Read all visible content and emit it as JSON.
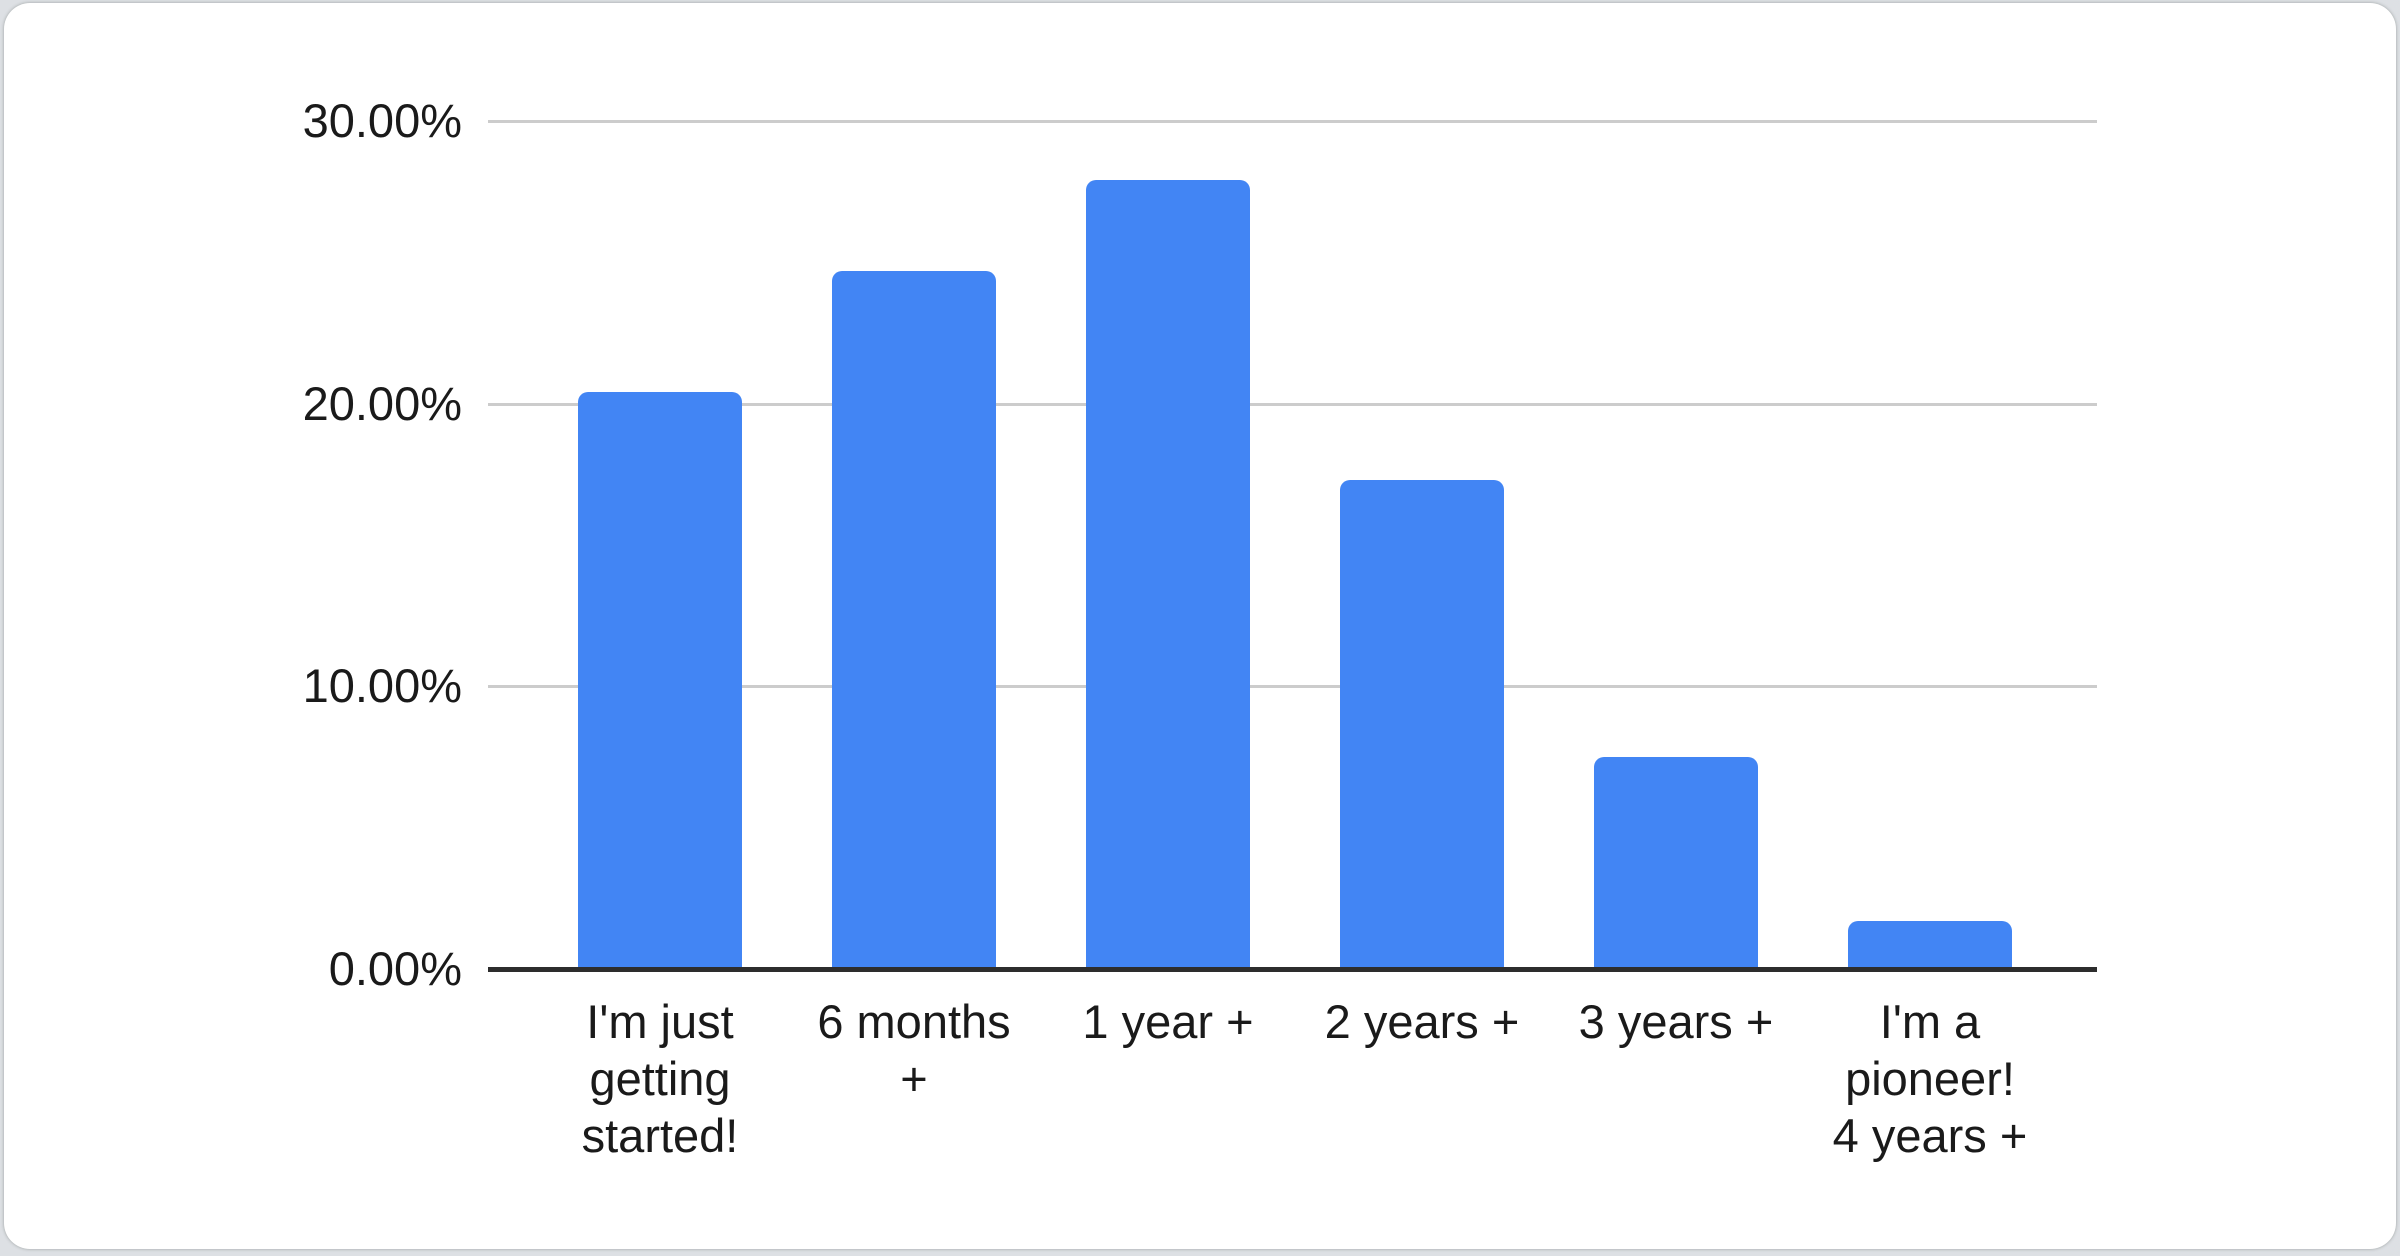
{
  "page": {
    "background_color": "#dde0e4",
    "card_background_color": "#ffffff"
  },
  "chart_data": {
    "type": "bar",
    "title": "",
    "xlabel": "",
    "ylabel": "",
    "unit": "%",
    "categories": [
      "I'm just getting started!",
      "6 months +",
      "1 year +",
      "2 years +",
      "3 years +",
      "I'm a pioneer! 4 years +"
    ],
    "category_display": [
      "I'm just\ngetting\nstarted!",
      "6 months\n+",
      "1 year +",
      "2 years +",
      "3 years +",
      "I'm a\npioneer!\n4 years +"
    ],
    "values": [
      20.4,
      24.7,
      27.9,
      17.3,
      7.5,
      1.7
    ],
    "ylim": [
      0,
      30
    ],
    "yticks": [
      {
        "value": 0,
        "label": "0.00%"
      },
      {
        "value": 10,
        "label": "10.00%"
      },
      {
        "value": 20,
        "label": "20.00%"
      },
      {
        "value": 30,
        "label": "30.00%"
      }
    ],
    "grid": true,
    "legend_position": "none",
    "bar_color": "#4285f4",
    "gridline_color": "#cccccc",
    "axis_color": "#2d2d2d",
    "label_color": "#1a1a1a"
  }
}
